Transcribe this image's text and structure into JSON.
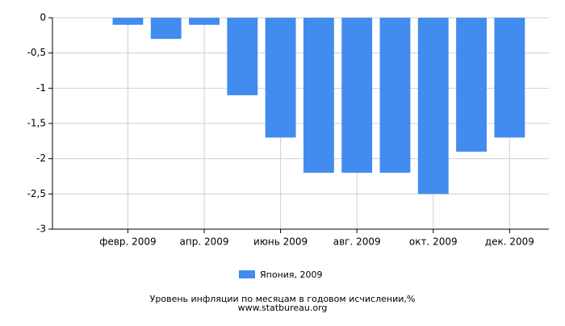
{
  "chart_data": {
    "type": "bar",
    "title": "Уровень инфляции по месяцам в годовом исчислении,%",
    "subtitle": "www.statbureau.org",
    "categories": [
      null,
      "февр. 2009",
      null,
      "апр. 2009",
      null,
      "июнь 2009",
      null,
      "авг. 2009",
      null,
      "окт. 2009",
      null,
      "дек. 2009"
    ],
    "series": [
      {
        "name": "Япония, 2009",
        "color": "#428bef",
        "values": [
          0,
          -0.1,
          -0.3,
          -0.1,
          -1.1,
          -1.7,
          -2.2,
          -2.2,
          -2.2,
          -2.5,
          -1.9,
          -1.7
        ]
      }
    ],
    "ylim": [
      -3,
      0
    ],
    "yticks": [
      0,
      {
        "value": -0.5,
        "label": "-0,5"
      },
      -1,
      {
        "value": -1.5,
        "label": "-1,5"
      },
      -2,
      {
        "value": -2.5,
        "label": "-2,5"
      },
      -3
    ],
    "grid": true
  }
}
